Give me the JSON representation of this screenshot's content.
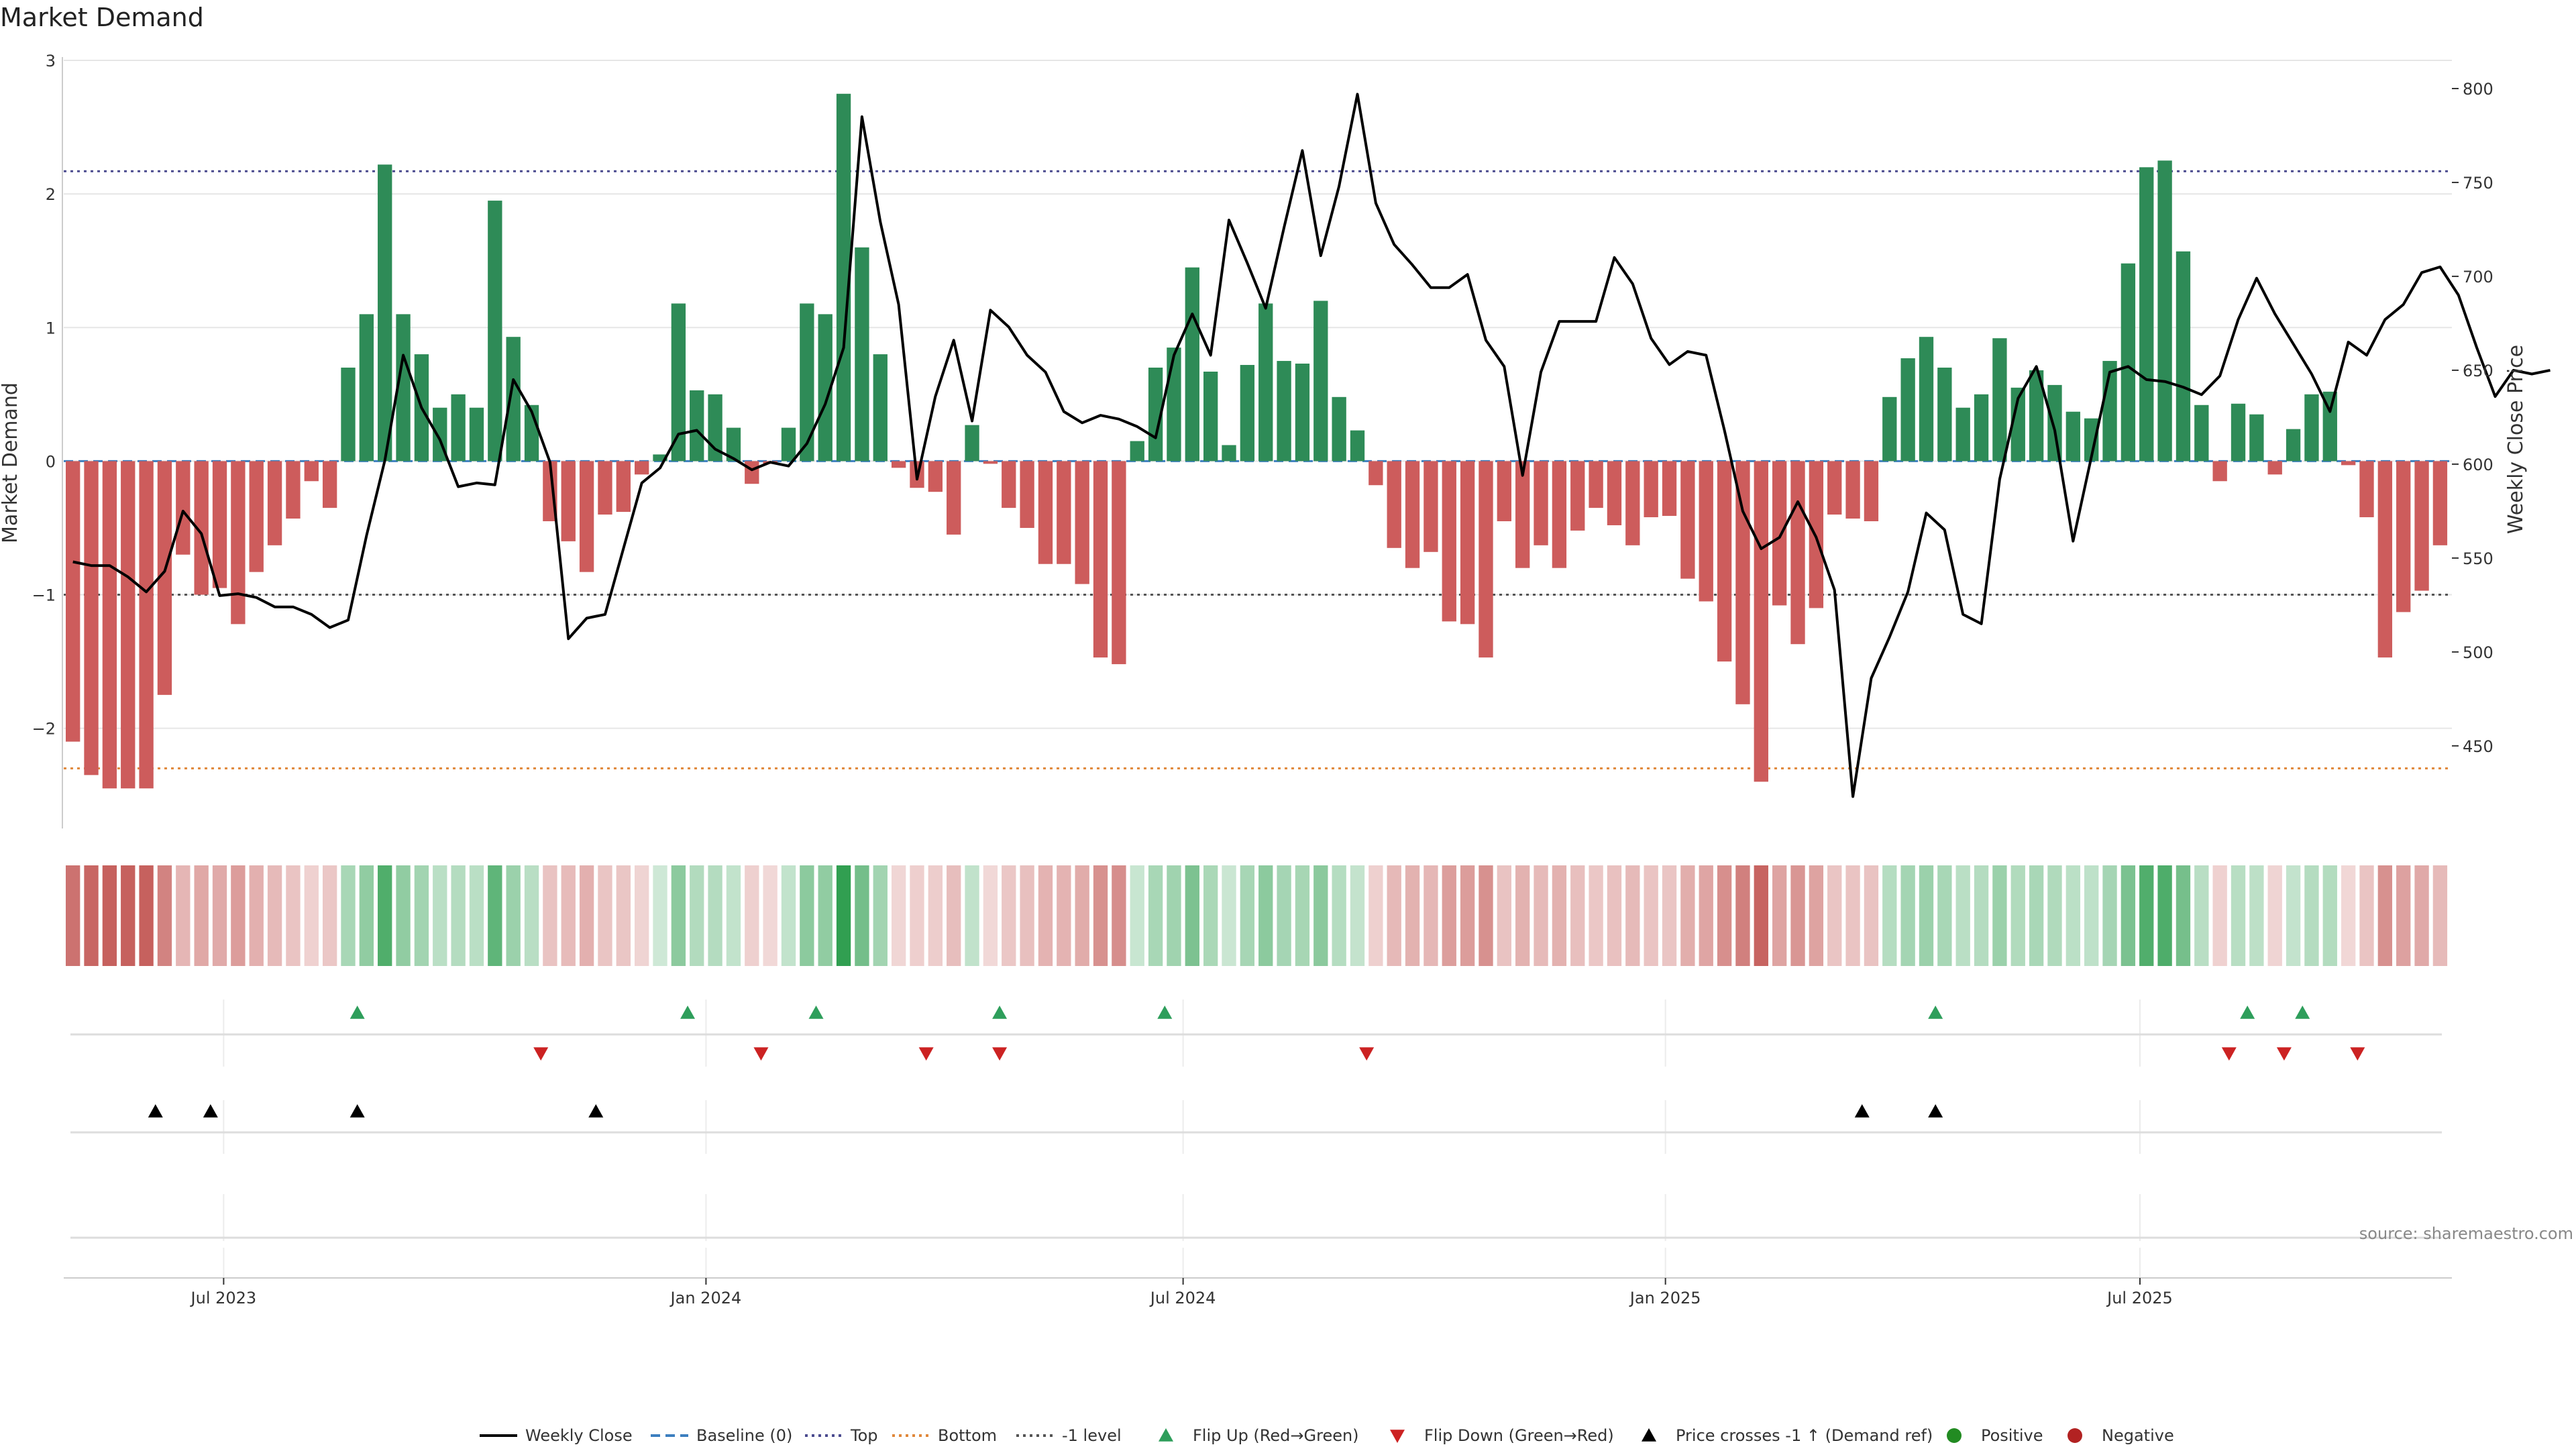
{
  "chart_data": {
    "type": "bar",
    "title": "Market Demand",
    "ylabel": "Market Demand",
    "y2label": "Weekly Close Price",
    "ylim": [
      -2.75,
      3.0
    ],
    "y2lim": [
      406,
      815
    ],
    "yticks": [
      -2,
      -1,
      0,
      1,
      2,
      3
    ],
    "y2ticks": [
      450,
      500,
      550,
      600,
      650,
      700,
      750,
      800
    ],
    "reference_lines": {
      "top": 2.17,
      "bottom": -2.3,
      "minus_one": -1,
      "baseline": 0
    },
    "x_start": "2023-05-01",
    "x_end": "2025-10-28",
    "xticks": [
      {
        "label": "Jul 2023",
        "date": "2023-07-01"
      },
      {
        "label": "Jan 2024",
        "date": "2024-01-01"
      },
      {
        "label": "Jul 2024",
        "date": "2024-07-01"
      },
      {
        "label": "Jan 2025",
        "date": "2025-01-01"
      },
      {
        "label": "Jul 2025",
        "date": "2025-07-01"
      }
    ],
    "first_week": "2023-05-01",
    "week_days": 7,
    "demand": [
      -2.1,
      -2.35,
      -2.45,
      -2.45,
      -2.45,
      -1.75,
      -0.7,
      -1.0,
      -0.95,
      -1.22,
      -0.83,
      -0.63,
      -0.43,
      -0.15,
      -0.35,
      0.7,
      1.1,
      2.22,
      1.1,
      0.8,
      0.4,
      0.5,
      0.4,
      1.95,
      0.93,
      0.42,
      -0.45,
      -0.6,
      -0.83,
      -0.4,
      -0.38,
      -0.1,
      0.05,
      1.18,
      0.53,
      0.5,
      0.25,
      -0.17,
      -0.02,
      0.25,
      1.18,
      1.1,
      2.75,
      1.6,
      0.8,
      -0.05,
      -0.2,
      -0.23,
      -0.55,
      0.27,
      -0.02,
      -0.35,
      -0.5,
      -0.77,
      -0.77,
      -0.92,
      -1.47,
      -1.52,
      0.15,
      0.7,
      0.85,
      1.45,
      0.67,
      0.12,
      0.72,
      1.18,
      0.75,
      0.73,
      1.2,
      0.48,
      0.23,
      -0.18,
      -0.65,
      -0.8,
      -0.68,
      -1.2,
      -1.22,
      -1.47,
      -0.45,
      -0.8,
      -0.63,
      -0.8,
      -0.52,
      -0.35,
      -0.48,
      -0.63,
      -0.42,
      -0.41,
      -0.88,
      -1.05,
      -1.5,
      -1.82,
      -2.4,
      -1.08,
      -1.37,
      -1.1,
      -0.4,
      -0.43,
      -0.45,
      0.48,
      0.77,
      0.93,
      0.7,
      0.4,
      0.5,
      0.92,
      0.55,
      0.68,
      0.57,
      0.37,
      0.32,
      0.75,
      1.48,
      2.2,
      2.25,
      1.57,
      0.42,
      -0.15,
      0.43,
      0.35,
      -0.1,
      0.24,
      0.5,
      0.52,
      -0.03,
      -0.42,
      -1.47,
      -1.13,
      -0.97,
      -0.63
    ],
    "price": [
      548,
      546,
      546,
      540,
      532,
      543,
      575,
      563,
      530,
      531,
      529,
      524,
      524,
      520,
      513,
      517,
      562,
      602,
      658,
      630,
      613,
      588,
      590,
      589,
      645,
      628,
      601,
      507,
      518,
      520,
      555,
      590,
      598,
      616,
      618,
      608,
      603,
      597,
      601,
      599,
      611,
      632,
      662,
      785,
      729,
      685,
      592,
      636,
      666,
      623,
      682,
      673,
      658,
      649,
      628,
      622,
      626,
      624,
      620,
      614,
      658,
      680,
      658,
      730,
      707,
      683,
      726,
      767,
      711,
      748,
      797,
      739,
      717,
      706,
      694,
      694,
      701,
      666,
      652,
      594,
      649,
      676,
      676,
      676,
      710,
      696,
      667,
      653,
      660,
      658,
      618,
      575,
      555,
      561,
      580,
      561,
      533,
      423,
      486,
      508,
      532,
      574,
      565,
      520,
      515,
      592,
      635,
      652,
      618,
      559,
      604,
      649,
      652,
      645,
      644,
      641,
      637,
      647,
      677,
      699,
      680,
      664,
      648,
      628,
      665,
      658,
      677,
      685,
      702,
      705,
      690,
      662,
      636,
      650,
      648,
      650
    ],
    "flip_up": [
      "2023-08-21",
      "2023-12-25",
      "2024-02-12",
      "2024-04-22",
      "2024-06-24",
      "2025-04-14",
      "2025-08-11",
      "2025-09-01"
    ],
    "flip_down": [
      "2023-10-30",
      "2024-01-22",
      "2024-03-25",
      "2024-04-22",
      "2024-09-09",
      "2025-08-04",
      "2025-08-25",
      "2025-09-22"
    ],
    "price_cross": [
      "2023-06-05",
      "2023-06-26",
      "2023-08-21",
      "2023-11-20",
      "2025-03-17",
      "2025-04-14"
    ],
    "legend": [
      {
        "label": "Weekly Close",
        "kind": "line",
        "color": "#000000"
      },
      {
        "label": "Baseline (0)",
        "kind": "dash",
        "color": "#3d7fbf"
      },
      {
        "label": "Top",
        "kind": "dot",
        "color": "#4b4b8f"
      },
      {
        "label": "Bottom",
        "kind": "dot",
        "color": "#e0883a"
      },
      {
        "label": "-1 level",
        "kind": "dot",
        "color": "#555555"
      },
      {
        "label": "Flip Up (Red→Green)",
        "kind": "tri-up",
        "color": "#2e9e5b"
      },
      {
        "label": "Flip Down (Green→Red)",
        "kind": "tri-down",
        "color": "#cc2222"
      },
      {
        "label": "Price crosses -1 ↑ (Demand ref)",
        "kind": "tri-up",
        "color": "#000000"
      },
      {
        "label": "Positive",
        "kind": "circle",
        "color": "#228b22"
      },
      {
        "label": "Negative",
        "kind": "circle",
        "color": "#b22222"
      }
    ],
    "colors": {
      "positive": "#2e8b57",
      "negative": "#cd5c5c",
      "heat_pos": "#2e9e4f",
      "heat_neg": "#c0504d"
    }
  },
  "source": "source: sharemaestro.com"
}
